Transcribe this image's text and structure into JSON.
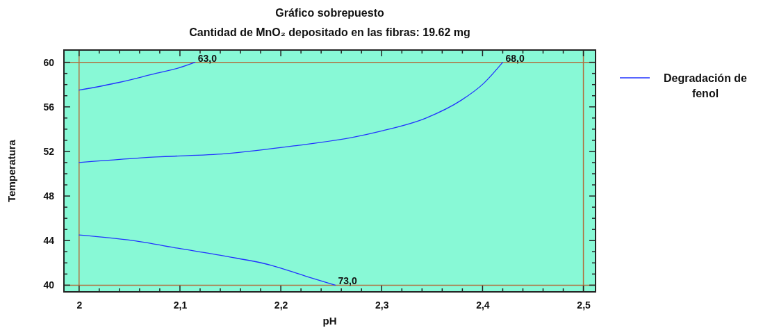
{
  "chart_data": {
    "type": "line",
    "title": "Gráfico sobrepuesto",
    "subtitle": "Cantidad de MnO₂ depositado en las fibras: 19.62 mg",
    "xlabel": "pH",
    "ylabel": "Temperatura",
    "xlim": [
      1.985,
      2.512
    ],
    "ylim": [
      39.4,
      61.1
    ],
    "xticks": [
      {
        "value": 2,
        "label": "2"
      },
      {
        "value": 2.02,
        "label": null
      },
      {
        "value": 2.04,
        "label": null
      },
      {
        "value": 2.06,
        "label": null
      },
      {
        "value": 2.08,
        "label": null
      },
      {
        "value": 2.1,
        "label": "2,1"
      },
      {
        "value": 2.12,
        "label": null
      },
      {
        "value": 2.14,
        "label": null
      },
      {
        "value": 2.16,
        "label": null
      },
      {
        "value": 2.18,
        "label": null
      },
      {
        "value": 2.2,
        "label": "2,2"
      },
      {
        "value": 2.22,
        "label": null
      },
      {
        "value": 2.24,
        "label": null
      },
      {
        "value": 2.26,
        "label": null
      },
      {
        "value": 2.28,
        "label": null
      },
      {
        "value": 2.3,
        "label": "2,3"
      },
      {
        "value": 2.32,
        "label": null
      },
      {
        "value": 2.34,
        "label": null
      },
      {
        "value": 2.36,
        "label": null
      },
      {
        "value": 2.38,
        "label": null
      },
      {
        "value": 2.4,
        "label": "2,4"
      },
      {
        "value": 2.42,
        "label": null
      },
      {
        "value": 2.44,
        "label": null
      },
      {
        "value": 2.46,
        "label": null
      },
      {
        "value": 2.48,
        "label": null
      },
      {
        "value": 2.5,
        "label": "2,5"
      }
    ],
    "yticks": [
      40,
      {
        "value": 41,
        "label": null
      },
      {
        "value": 42,
        "label": null
      },
      {
        "value": 43,
        "label": null
      },
      44,
      {
        "value": 45,
        "label": null
      },
      {
        "value": 46,
        "label": null
      },
      {
        "value": 47,
        "label": null
      },
      48,
      {
        "value": 49,
        "label": null
      },
      {
        "value": 50,
        "label": null
      },
      {
        "value": 51,
        "label": null
      },
      52,
      {
        "value": 53,
        "label": null
      },
      {
        "value": 54,
        "label": null
      },
      {
        "value": 55,
        "label": null
      },
      56,
      {
        "value": 57,
        "label": null
      },
      {
        "value": 58,
        "label": null
      },
      {
        "value": 59,
        "label": null
      },
      60
    ],
    "series": [
      {
        "name": "Degradación de fenol",
        "color": "#2233ff",
        "x": [
          2,
          2.04,
          2.076,
          2.099,
          2.115
        ],
        "values": [
          57.5,
          58.2,
          59,
          59.5,
          60
        ]
      },
      {
        "color": "#2233ff",
        "x": [
          2,
          2.076,
          2.145,
          2.213,
          2.273,
          2.298,
          2.344,
          2.379,
          2.401,
          2.42
        ],
        "values": [
          51,
          51.5,
          51.8,
          52.5,
          53.3,
          53.8,
          55,
          56.6,
          58.1,
          60
        ]
      },
      {
        "color": "#2233ff",
        "x": [
          2,
          2.053,
          2.099,
          2.145,
          2.19,
          2.225,
          2.254
        ],
        "values": [
          44.5,
          44,
          43.3,
          42.6,
          41.8,
          40.8,
          40
        ]
      }
    ],
    "annotations": [
      {
        "text": "63,0",
        "x": 2.115,
        "y": 60
      },
      {
        "text": "68,0",
        "x": 2.42,
        "y": 60
      },
      {
        "text": "73,0",
        "x": 2.254,
        "y": 40
      }
    ],
    "ref_lines": [
      {
        "axis": "x",
        "value": 2,
        "color": "#b07040"
      },
      {
        "axis": "x",
        "value": 2.5,
        "color": "#b07040"
      },
      {
        "axis": "y",
        "value": 40,
        "color": "#b07040"
      },
      {
        "axis": "y",
        "value": 60,
        "color": "#b07040"
      }
    ],
    "legend": "right",
    "grid": false
  }
}
